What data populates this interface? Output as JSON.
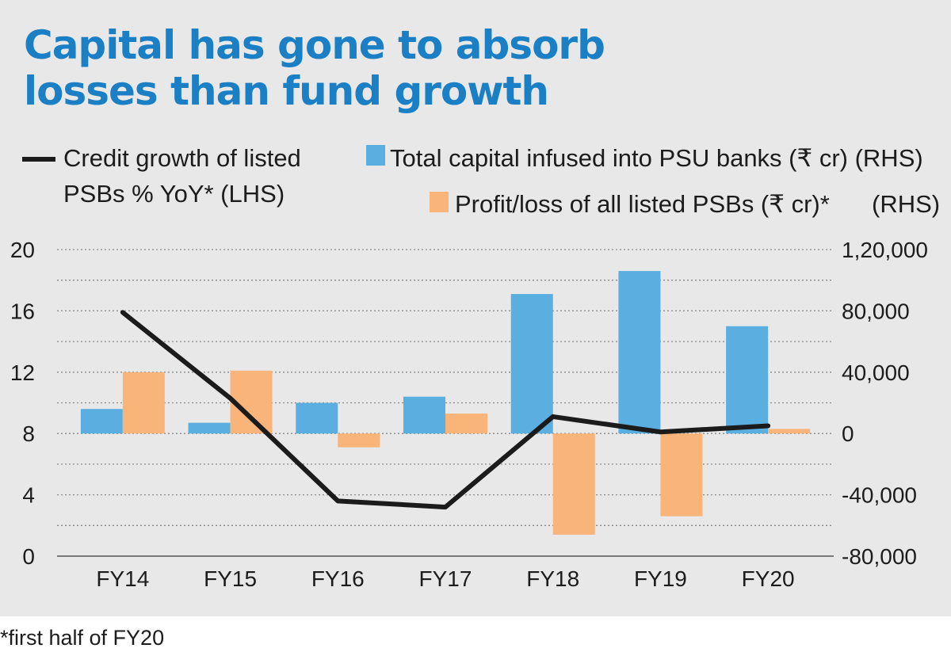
{
  "chart_data": {
    "type": "bar+line",
    "title": "Capital has gone to absorb losses than fund growth",
    "footnote": "*first half of FY20",
    "categories": [
      "FY14",
      "FY15",
      "FY16",
      "FY17",
      "FY18",
      "FY19",
      "FY20"
    ],
    "left_axis": {
      "min": 0,
      "max": 20,
      "ticks": [
        "0",
        "4",
        "8",
        "12",
        "16",
        "20"
      ],
      "tick_values": [
        0,
        4,
        8,
        12,
        16,
        20
      ]
    },
    "right_axis": {
      "min": -80000,
      "max": 120000,
      "ticks": [
        "-80,000",
        "-40,000",
        "0",
        "40,000",
        "80,000",
        "1,20,000"
      ],
      "tick_values": [
        -80000,
        -40000,
        0,
        40000,
        80000,
        120000
      ]
    },
    "series": [
      {
        "name": "Credit growth of listed PSBs % YoY* (LHS)",
        "type": "line",
        "axis": "left",
        "color": "#1b1b1b",
        "values": [
          15.9,
          10.3,
          3.6,
          3.2,
          9.1,
          8.1,
          8.5
        ]
      },
      {
        "name": "Total capital infused into PSU banks (₹ cr) (RHS)",
        "type": "bar",
        "axis": "right",
        "color": "#5aaee0",
        "values": [
          16000,
          7000,
          20000,
          24000,
          91000,
          106000,
          70000
        ]
      },
      {
        "name": "Profit/loss of all listed PSBs (₹ cr)* (RHS)",
        "type": "bar",
        "axis": "right",
        "color": "#f9b47a",
        "values": [
          40000,
          41000,
          -9000,
          13000,
          -66000,
          -54000,
          3000
        ]
      }
    ],
    "legend": {
      "line_label_1": "Credit growth of listed",
      "line_label_2": "PSBs % YoY* (LHS)",
      "capital_label": "Total capital infused into PSU banks (₹ cr) (RHS)",
      "profit_label": "Profit/loss of all listed PSBs (₹ cr)*",
      "profit_axis_label": "(RHS)"
    },
    "grid": true
  }
}
